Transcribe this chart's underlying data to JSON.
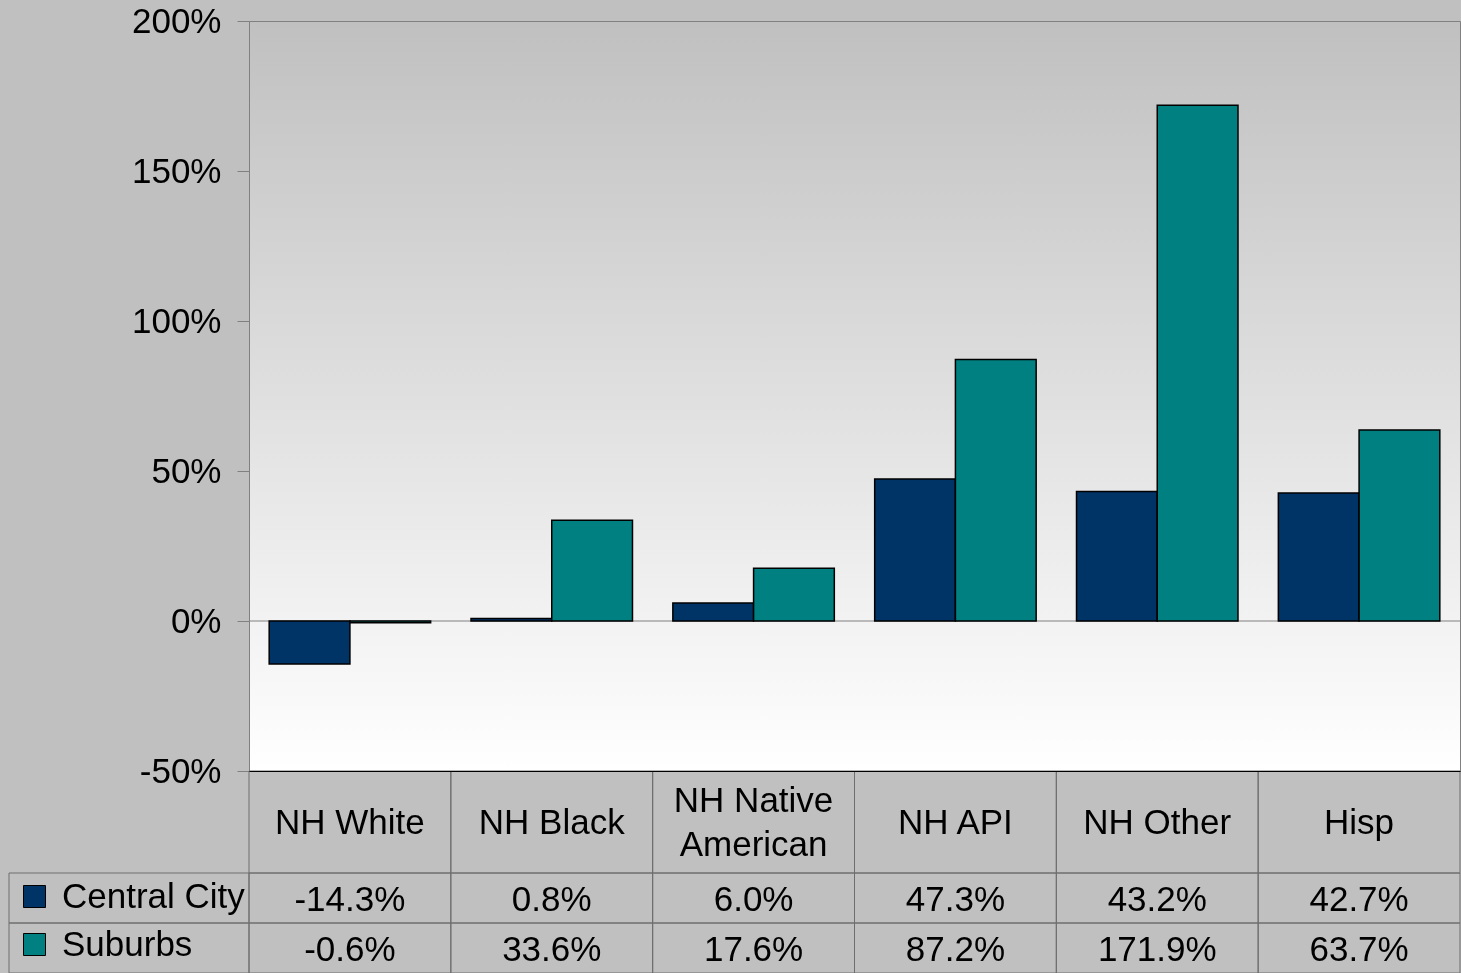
{
  "chart_data": {
    "type": "bar",
    "categories": [
      "NH White",
      "NH Black",
      "NH Native American",
      "NH API",
      "NH Other",
      "Hisp"
    ],
    "series": [
      {
        "name": "Central City",
        "color": "#003366",
        "values": [
          -14.3,
          0.8,
          6.0,
          47.3,
          43.2,
          42.7
        ],
        "value_labels": [
          "-14.3%",
          "0.8%",
          "6.0%",
          "47.3%",
          "43.2%",
          "42.7%"
        ]
      },
      {
        "name": "Suburbs",
        "color": "#008080",
        "values": [
          -0.6,
          33.6,
          17.6,
          87.2,
          171.9,
          63.7
        ],
        "value_labels": [
          "-0.6%",
          "33.6%",
          "17.6%",
          "87.2%",
          "171.9%",
          "63.7%"
        ]
      }
    ],
    "ylim": [
      -50,
      200
    ],
    "yticks": [
      {
        "value": -50,
        "label": "-50%"
      },
      {
        "value": 0,
        "label": "0%"
      },
      {
        "value": 50,
        "label": "50%"
      },
      {
        "value": 100,
        "label": "100%"
      },
      {
        "value": 150,
        "label": "150%"
      },
      {
        "value": 200,
        "label": "200%"
      }
    ],
    "ref_lines": [
      {
        "axis": "y",
        "value": 0,
        "color": "#808080"
      }
    ],
    "legend": "bottom left"
  }
}
